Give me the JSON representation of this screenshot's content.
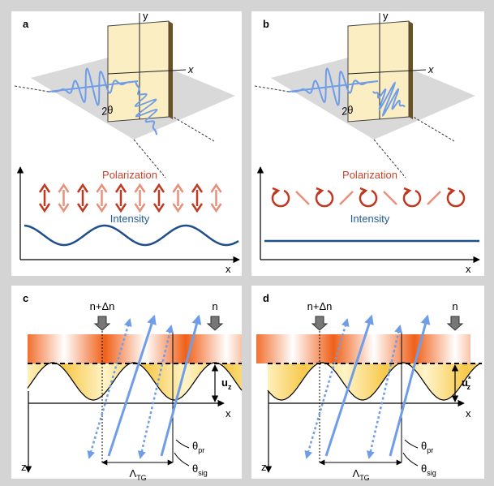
{
  "panels": [
    {
      "label": "a",
      "axis_y": "y",
      "axis_x": "x",
      "angle": "2θ",
      "polarization": "Polarization",
      "intensity": "Intensity",
      "plot_x": "x"
    },
    {
      "label": "b",
      "axis_y": "y",
      "axis_x": "x",
      "angle": "2θ",
      "polarization": "Polarization",
      "intensity": "Intensity",
      "plot_x": "x"
    },
    {
      "label": "c",
      "index_left": "n+Δn",
      "index_right": "n",
      "displacement": {
        "base": "u",
        "sub": "z"
      },
      "axis_x": "x",
      "axis_z": "z",
      "theta_pr": {
        "base": "θ",
        "sub": "pr"
      },
      "period": {
        "base": "Λ",
        "sub": "TG"
      },
      "theta_sig": {
        "base": "θ",
        "sub": "sig"
      }
    },
    {
      "label": "d",
      "index_left": "n+Δn",
      "index_right": "n",
      "displacement": {
        "base": "u",
        "sub": "z",
        "sup": "*"
      },
      "axis_x": "x",
      "axis_z": "z",
      "theta_pr": {
        "base": "θ",
        "sub": "pr"
      },
      "period": {
        "base": "Λ",
        "sub": "TG"
      },
      "theta_sig": {
        "base": "θ",
        "sub": "sig"
      }
    }
  ]
}
